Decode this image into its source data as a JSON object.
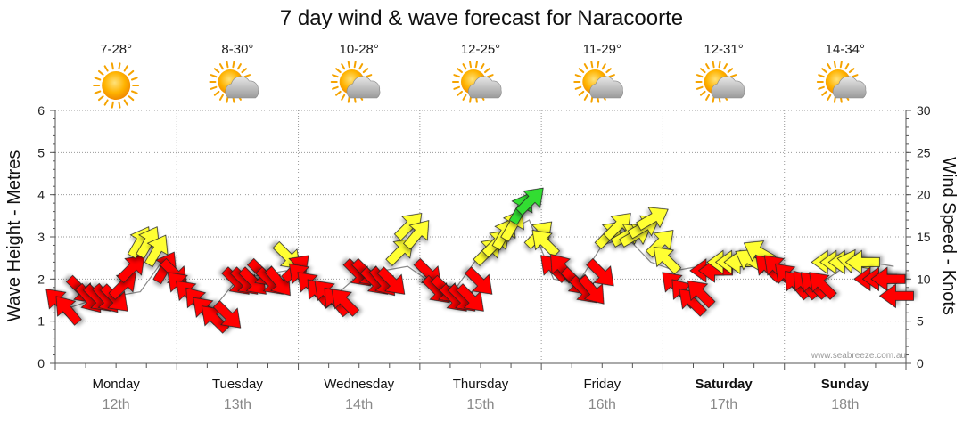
{
  "chart_data": {
    "type": "wind-wave-forecast",
    "title": "7 day wind & wave forecast for Naracoorte",
    "ylabel_left": "Wave Height - Metres",
    "ylabel_right": "Wind Speed - Knots",
    "ylim_left": [
      0,
      6
    ],
    "ylim_right": [
      0,
      30
    ],
    "left_ticks": [
      "0",
      "1",
      "2",
      "3",
      "4",
      "5",
      "6"
    ],
    "right_ticks": [
      "0",
      "5",
      "10",
      "15",
      "20",
      "25",
      "30"
    ],
    "grid": true,
    "watermark": "www.seabreeze.com.au",
    "days": [
      {
        "name": "Monday",
        "date": "12th",
        "temp": "7-28°",
        "weather": "sunny-icon",
        "bold": false
      },
      {
        "name": "Tuesday",
        "date": "13th",
        "temp": "8-30°",
        "weather": "partly-cloudy-icon",
        "bold": false
      },
      {
        "name": "Wednesday",
        "date": "14th",
        "temp": "10-28°",
        "weather": "partly-cloudy-icon",
        "bold": false
      },
      {
        "name": "Thursday",
        "date": "15th",
        "temp": "12-25°",
        "weather": "partly-cloudy-icon",
        "bold": false
      },
      {
        "name": "Friday",
        "date": "16th",
        "temp": "11-29°",
        "weather": "partly-cloudy-icon",
        "bold": false
      },
      {
        "name": "Saturday",
        "date": "17th",
        "temp": "12-31°",
        "weather": "partly-cloudy-icon",
        "bold": true
      },
      {
        "name": "Sunday",
        "date": "18th",
        "temp": "14-34°",
        "weather": "partly-cloudy-icon",
        "bold": true
      }
    ],
    "wind_colors": {
      "strong": "#ff0000",
      "moderate": "#ffff33",
      "light": "#33dd33"
    },
    "wind_series": {
      "day_offsets": [
        0.05,
        0.12,
        0.19,
        0.26,
        0.33,
        0.4,
        0.47,
        0.54,
        0.61,
        0.68,
        0.75,
        0.82,
        0.89,
        0.96
      ],
      "speeds_knots": [
        [
          7,
          6,
          9,
          8,
          8,
          8,
          8,
          9,
          11,
          14,
          14,
          13,
          11,
          11
        ],
        [
          9,
          8,
          7,
          6,
          5,
          6,
          10,
          10,
          10,
          11,
          10,
          10,
          13,
          11
        ],
        [
          10,
          9,
          8,
          8,
          7,
          7,
          11,
          11,
          10,
          10,
          10,
          13,
          16,
          15
        ],
        [
          11,
          9,
          9,
          8,
          8,
          8,
          10,
          13,
          14,
          15,
          16,
          18,
          19,
          15
        ],
        [
          14,
          11,
          11,
          10,
          9,
          9,
          11,
          15,
          16,
          15,
          15,
          16,
          17,
          14
        ],
        [
          12,
          9,
          8,
          7,
          8,
          11,
          11,
          12,
          12,
          12,
          12,
          13,
          11,
          11
        ],
        [
          10,
          9,
          9,
          9,
          9,
          12,
          12,
          12,
          12,
          12,
          10,
          10,
          10,
          8
        ]
      ],
      "directions_deg": [
        [
          315,
          320,
          135,
          140,
          135,
          140,
          135,
          45,
          45,
          30,
          30,
          30,
          30,
          135
        ],
        [
          315,
          315,
          320,
          315,
          315,
          135,
          135,
          135,
          135,
          135,
          135,
          140,
          135,
          45
        ],
        [
          315,
          315,
          320,
          315,
          320,
          315,
          135,
          135,
          135,
          140,
          135,
          45,
          45,
          40
        ],
        [
          135,
          135,
          135,
          135,
          135,
          135,
          135,
          45,
          45,
          30,
          30,
          30,
          45,
          45
        ],
        [
          315,
          315,
          320,
          135,
          135,
          140,
          135,
          45,
          45,
          60,
          60,
          60,
          60,
          45
        ],
        [
          315,
          315,
          320,
          315,
          315,
          270,
          270,
          270,
          270,
          270,
          300,
          300,
          315,
          315
        ],
        [
          315,
          320,
          320,
          315,
          315,
          270,
          270,
          270,
          280,
          270,
          270,
          270,
          270,
          270
        ]
      ]
    },
    "wave_series": {
      "day_offsets": [
        0.1,
        0.3,
        0.5,
        0.7,
        0.9
      ],
      "heights_m": [
        [
          1.3,
          1.5,
          1.6,
          1.7,
          2.5
        ],
        [
          1.6,
          1.3,
          2.0,
          2.1,
          2.2
        ],
        [
          1.8,
          1.6,
          2.1,
          2.2,
          2.3
        ],
        [
          1.9,
          1.8,
          2.6,
          3.1,
          3.4
        ],
        [
          2.0,
          1.9,
          2.8,
          3.0,
          2.4
        ],
        [
          2.2,
          2.3,
          2.4,
          2.5,
          2.4
        ],
        [
          2.0,
          1.9,
          2.3,
          2.4,
          2.3
        ]
      ]
    }
  }
}
